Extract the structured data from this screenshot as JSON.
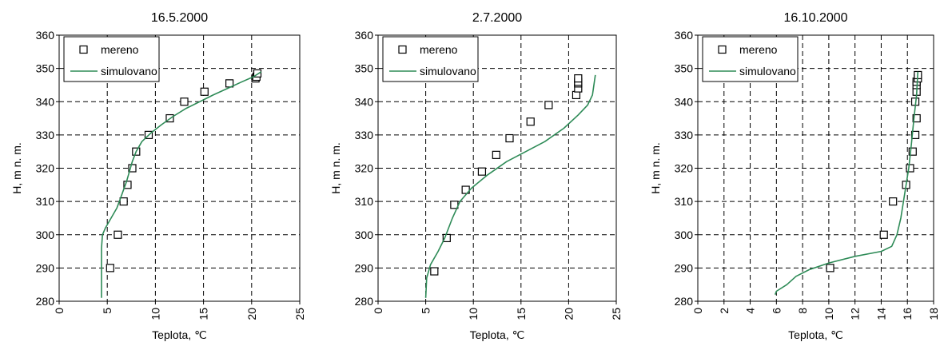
{
  "chart_data": [
    {
      "type": "scatter",
      "title": "16.5.2000",
      "xlabel": "Teplota, ℃",
      "ylabel": "H, m n. m.",
      "xlim": [
        0,
        25
      ],
      "ylim": [
        280,
        360
      ],
      "xticks": [
        "0",
        "5",
        "10",
        "15",
        "20",
        "25"
      ],
      "yticks": [
        "280",
        "290",
        "300",
        "310",
        "320",
        "330",
        "340",
        "350",
        "360"
      ],
      "grid": true,
      "legend_position": "top-left",
      "series": [
        {
          "name": "mereno",
          "kind": "scatter",
          "color": "#000000",
          "x": [
            5.3,
            6.1,
            6.7,
            7.1,
            7.6,
            8.0,
            9.3,
            11.5,
            13.0,
            15.1,
            17.7,
            20.4,
            20.5,
            20.6
          ],
          "y": [
            290,
            300,
            310,
            315,
            320,
            325,
            330,
            335,
            340,
            343,
            345.5,
            347,
            347.5,
            348.5
          ]
        },
        {
          "name": "simulovano",
          "kind": "line",
          "color": "#2e8b57",
          "x": [
            4.4,
            4.4,
            4.5,
            4.8,
            5.4,
            6.0,
            6.5,
            7.0,
            7.3,
            7.6,
            8.0,
            8.6,
            9.5,
            10.6,
            11.8,
            13.2,
            14.6,
            16.0,
            17.5,
            19.0,
            20.2,
            21.0
          ],
          "y": [
            281,
            296,
            300,
            302,
            305,
            308,
            312,
            316,
            319,
            322,
            325,
            328,
            330.5,
            333,
            335.5,
            338,
            340,
            342,
            344,
            346,
            347.5,
            349
          ]
        }
      ]
    },
    {
      "type": "scatter",
      "title": "2.7.2000",
      "xlabel": "Teplota, ℃",
      "ylabel": "H, m n. m.",
      "xlim": [
        0,
        25
      ],
      "ylim": [
        280,
        360
      ],
      "xticks": [
        "0",
        "5",
        "10",
        "15",
        "20",
        "25"
      ],
      "yticks": [
        "280",
        "290",
        "300",
        "310",
        "320",
        "330",
        "340",
        "350",
        "360"
      ],
      "grid": true,
      "legend_position": "top-left",
      "series": [
        {
          "name": "mereno",
          "kind": "scatter",
          "color": "#000000",
          "x": [
            5.9,
            7.2,
            8.0,
            9.2,
            10.9,
            12.4,
            13.8,
            16.0,
            17.9,
            20.8,
            21.0,
            21.0,
            21.0,
            21.0
          ],
          "y": [
            289,
            299,
            309,
            313.5,
            319,
            324,
            329,
            334,
            339,
            342,
            344,
            345.5,
            346,
            347
          ]
        },
        {
          "name": "simulovano",
          "kind": "line",
          "color": "#2e8b57",
          "x": [
            5.0,
            5.1,
            5.5,
            6.3,
            7.0,
            7.8,
            8.6,
            9.8,
            11.5,
            13.5,
            15.5,
            17.5,
            19.5,
            21.0,
            22.0,
            22.5,
            22.8
          ],
          "y": [
            281,
            287,
            291,
            295,
            299,
            305,
            310,
            314,
            318,
            322,
            325,
            328,
            332,
            336,
            339,
            342,
            348
          ]
        }
      ]
    },
    {
      "type": "scatter",
      "title": "16.10.2000",
      "xlabel": "Teplota, ℃",
      "ylabel": "H, m n. m.",
      "xlim": [
        0,
        18
      ],
      "ylim": [
        280,
        360
      ],
      "xticks": [
        "0",
        "2",
        "4",
        "6",
        "8",
        "10",
        "12",
        "14",
        "16",
        "18"
      ],
      "yticks": [
        "280",
        "290",
        "300",
        "310",
        "320",
        "330",
        "340",
        "350",
        "360"
      ],
      "grid": true,
      "legend_position": "top-left",
      "series": [
        {
          "name": "mereno",
          "kind": "scatter",
          "color": "#000000",
          "x": [
            10.1,
            14.2,
            14.9,
            15.9,
            16.2,
            16.4,
            16.6,
            16.7,
            16.6,
            16.7,
            16.7,
            16.7,
            16.8,
            16.8
          ],
          "y": [
            290,
            300,
            310,
            315,
            320,
            325,
            330,
            335,
            340,
            343,
            345,
            346,
            347,
            348
          ]
        },
        {
          "name": "simulovano",
          "kind": "line",
          "color": "#2e8b57",
          "x": [
            5.9,
            6.0,
            6.8,
            7.5,
            8.5,
            10.0,
            12.0,
            14.0,
            14.8,
            15.2,
            15.5,
            15.7,
            15.9,
            16.1,
            16.3,
            16.5,
            16.7,
            16.8
          ],
          "y": [
            282,
            283,
            285,
            287.5,
            289.5,
            291.5,
            293.5,
            295,
            296.5,
            300,
            305,
            310,
            315,
            320,
            327,
            335,
            342,
            349
          ]
        }
      ]
    }
  ]
}
